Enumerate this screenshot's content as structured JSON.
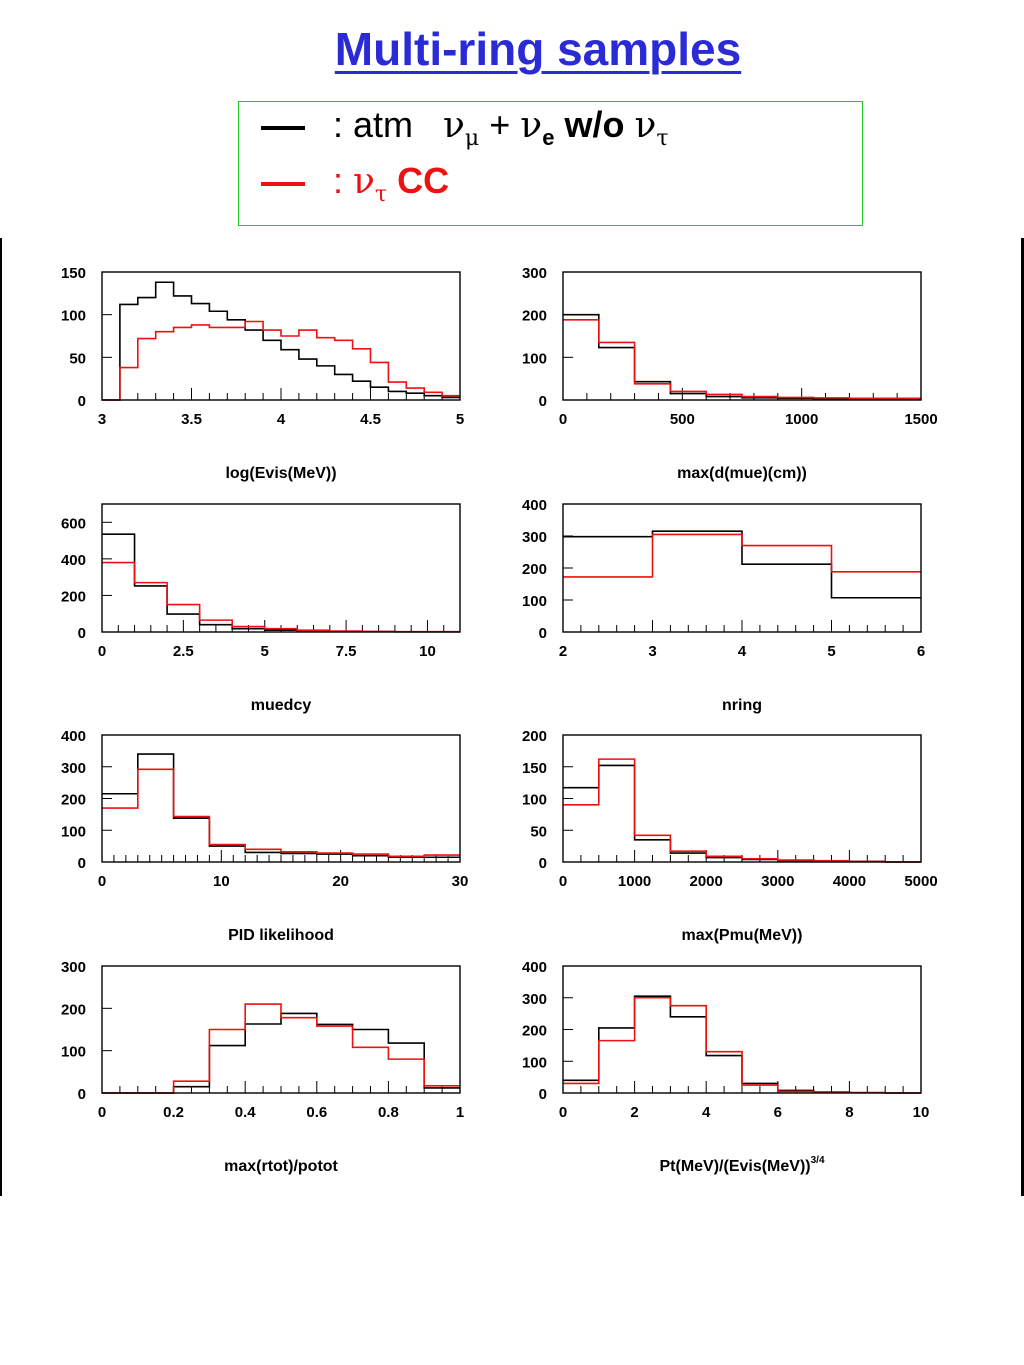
{
  "title": "Multi-ring samples",
  "legend": {
    "items": [
      {
        "color": "#000000",
        "prefix": ": atm",
        "nu1": "ν",
        "sub1": "μ",
        "plus": "+",
        "nu2": "ν",
        "sub2": "e",
        "wo": "w/o",
        "nu3": "ν",
        "sub3": "τ"
      },
      {
        "color": "#ee1111",
        "prefix": ":",
        "nu1": "ν",
        "sub1": "τ",
        "rest": "CC"
      }
    ]
  },
  "colors": {
    "title": "#2b2bd6",
    "legend_border": "#22cc22",
    "atm": "#000000",
    "nutau": "#ee1111"
  },
  "chart_data": [
    {
      "type": "histogram",
      "xlabel": "log(Evis(MeV))",
      "xlim": [
        3,
        5
      ],
      "ylim": [
        0,
        150
      ],
      "xtick_step": 0.1,
      "xticks": [
        3,
        3.5,
        4,
        4.5,
        5
      ],
      "xtick_labels": [
        "3",
        "3.5",
        "4",
        "4.5",
        "5"
      ],
      "yticks": [
        0,
        50,
        100,
        150
      ],
      "ytick_labels": [
        "0",
        "50",
        "100",
        "150"
      ],
      "bin_edges": [
        3,
        3.1,
        3.2,
        3.3,
        3.4,
        3.5,
        3.6,
        3.7,
        3.8,
        3.9,
        4.0,
        4.1,
        4.2,
        4.3,
        4.4,
        4.5,
        4.6,
        4.7,
        4.8,
        4.9,
        5.0
      ],
      "series": [
        {
          "values": [
            0,
            112,
            120,
            138,
            122,
            113,
            104,
            94,
            82,
            70,
            59,
            48,
            40,
            30,
            22,
            15,
            10,
            8,
            5,
            3
          ]
        },
        {
          "values": [
            0,
            38,
            72,
            80,
            85,
            88,
            85,
            85,
            92,
            82,
            75,
            82,
            73,
            70,
            60,
            44,
            21,
            14,
            9,
            5
          ]
        }
      ]
    },
    {
      "type": "histogram",
      "xlabel": "max(d(mue)(cm))",
      "xlim": [
        0,
        1500
      ],
      "ylim": [
        0,
        300
      ],
      "xtick_step": 100,
      "xticks": [
        0,
        500,
        1000,
        1500
      ],
      "xtick_labels": [
        "0",
        "500",
        "1000",
        "1500"
      ],
      "yticks": [
        0,
        100,
        200,
        300
      ],
      "ytick_labels": [
        "0",
        "100",
        "200",
        "300"
      ],
      "bin_edges": [
        0,
        150,
        300,
        450,
        600,
        750,
        900,
        1050,
        1200,
        1350,
        1500
      ],
      "series": [
        {
          "values": [
            200,
            123,
            43,
            15,
            8,
            5,
            4,
            3,
            2,
            1
          ]
        },
        {
          "values": [
            188,
            135,
            38,
            20,
            13,
            8,
            6,
            5,
            4,
            4
          ]
        }
      ]
    },
    {
      "type": "histogram",
      "xlabel": "muedcy",
      "xlim": [
        0,
        11
      ],
      "ylim": [
        0,
        700
      ],
      "xtick_step": 0.5,
      "xticks": [
        0,
        2.5,
        5,
        7.5,
        10
      ],
      "xtick_labels": [
        "0",
        "2.5",
        "5",
        "7.5",
        "10"
      ],
      "yticks": [
        0,
        200,
        400,
        600
      ],
      "ytick_labels": [
        "0",
        "200",
        "400",
        "600"
      ],
      "bin_edges": [
        0,
        1,
        2,
        3,
        4,
        5,
        6,
        7,
        8,
        9,
        10,
        11
      ],
      "series": [
        {
          "values": [
            535,
            252,
            98,
            40,
            18,
            10,
            5,
            3,
            2,
            1,
            1
          ]
        },
        {
          "values": [
            380,
            270,
            150,
            65,
            30,
            18,
            10,
            5,
            3,
            2,
            2
          ]
        }
      ]
    },
    {
      "type": "histogram",
      "xlabel": "nring",
      "xlim": [
        2,
        6
      ],
      "ylim": [
        0,
        400
      ],
      "xtick_step": 0.2,
      "xticks": [
        2,
        3,
        4,
        5,
        6
      ],
      "xtick_labels": [
        "2",
        "3",
        "4",
        "5",
        "6"
      ],
      "yticks": [
        0,
        100,
        200,
        300,
        400
      ],
      "ytick_labels": [
        "0",
        "100",
        "200",
        "300",
        "400"
      ],
      "bin_edges": [
        2,
        3,
        4,
        5,
        6
      ],
      "series": [
        {
          "values": [
            298,
            315,
            212,
            107
          ]
        },
        {
          "values": [
            172,
            305,
            270,
            188
          ]
        }
      ]
    },
    {
      "type": "histogram",
      "xlabel": "PID likelihood",
      "xlim": [
        0,
        30
      ],
      "ylim": [
        0,
        400
      ],
      "xtick_step": 1,
      "xticks": [
        0,
        10,
        20,
        30
      ],
      "xtick_labels": [
        "0",
        "10",
        "20",
        "30"
      ],
      "yticks": [
        0,
        100,
        200,
        300,
        400
      ],
      "ytick_labels": [
        "0",
        "100",
        "200",
        "300",
        "400"
      ],
      "bin_edges": [
        0,
        3,
        6,
        9,
        12,
        15,
        18,
        21,
        24,
        27,
        30
      ],
      "series": [
        {
          "values": [
            215,
            340,
            138,
            50,
            30,
            27,
            25,
            20,
            15,
            15
          ]
        },
        {
          "values": [
            170,
            292,
            143,
            55,
            40,
            32,
            28,
            25,
            18,
            22
          ]
        }
      ]
    },
    {
      "type": "histogram",
      "xlabel": "max(Pmu(MeV))",
      "xlim": [
        0,
        5000
      ],
      "ylim": [
        0,
        200
      ],
      "xtick_step": 250,
      "xticks": [
        0,
        1000,
        2000,
        3000,
        4000,
        5000
      ],
      "xtick_labels": [
        "0",
        "1000",
        "2000",
        "3000",
        "4000",
        "5000"
      ],
      "yticks": [
        0,
        50,
        100,
        150,
        200
      ],
      "ytick_labels": [
        "0",
        "50",
        "100",
        "150",
        "200"
      ],
      "bin_edges": [
        0,
        500,
        1000,
        1500,
        2000,
        2500,
        3000,
        3500,
        4000,
        4500,
        5000
      ],
      "series": [
        {
          "values": [
            117,
            152,
            35,
            14,
            7,
            4,
            2,
            1,
            1,
            0
          ]
        },
        {
          "values": [
            90,
            162,
            42,
            17,
            9,
            5,
            3,
            2,
            1,
            0
          ]
        }
      ]
    },
    {
      "type": "histogram",
      "xlabel": "max(rtot)/potot",
      "xlim": [
        0,
        1
      ],
      "ylim": [
        0,
        300
      ],
      "xtick_step": 0.05,
      "xticks": [
        0,
        0.2,
        0.4,
        0.6,
        0.8,
        1
      ],
      "xtick_labels": [
        "0",
        "0.2",
        "0.4",
        "0.6",
        "0.8",
        "1"
      ],
      "yticks": [
        0,
        100,
        200,
        300
      ],
      "ytick_labels": [
        "0",
        "100",
        "200",
        "300"
      ],
      "bin_edges": [
        0,
        0.1,
        0.2,
        0.3,
        0.4,
        0.5,
        0.6,
        0.7,
        0.8,
        0.9,
        1.0
      ],
      "series": [
        {
          "values": [
            0,
            0,
            15,
            112,
            163,
            188,
            162,
            150,
            118,
            12
          ]
        },
        {
          "values": [
            0,
            0,
            28,
            150,
            210,
            178,
            158,
            108,
            80,
            17
          ]
        }
      ]
    },
    {
      "type": "histogram",
      "xlabel": "Pt(MeV)/(Evis(MeV))",
      "xlabel_sup": "3/4",
      "xlim": [
        0,
        10
      ],
      "ylim": [
        0,
        400
      ],
      "xtick_step": 0.5,
      "xticks": [
        0,
        2,
        4,
        6,
        8,
        10
      ],
      "xtick_labels": [
        "0",
        "2",
        "4",
        "6",
        "8",
        "10"
      ],
      "yticks": [
        0,
        100,
        200,
        300,
        400
      ],
      "ytick_labels": [
        "0",
        "100",
        "200",
        "300",
        "400"
      ],
      "bin_edges": [
        0,
        1,
        2,
        3,
        4,
        5,
        6,
        7,
        8,
        9,
        10
      ],
      "series": [
        {
          "values": [
            40,
            205,
            305,
            240,
            118,
            30,
            8,
            3,
            1,
            0
          ]
        },
        {
          "values": [
            30,
            165,
            300,
            275,
            130,
            25,
            5,
            2,
            1,
            0
          ]
        }
      ]
    }
  ]
}
